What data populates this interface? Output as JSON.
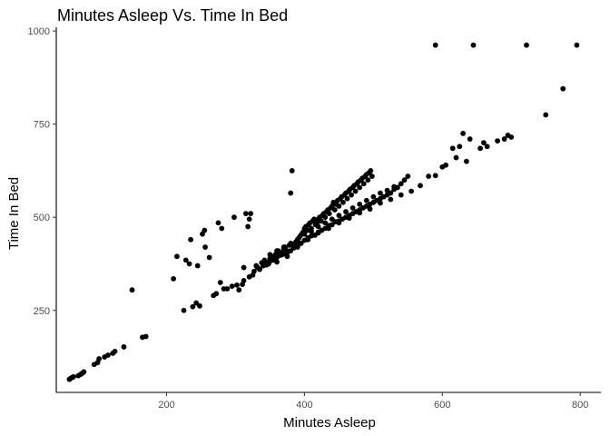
{
  "chart_data": {
    "type": "scatter",
    "title": "Minutes Asleep Vs. Time In Bed",
    "xlabel": "Minutes Asleep",
    "ylabel": "Time In Bed",
    "xlim": [
      40,
      830
    ],
    "ylim": [
      30,
      1010
    ],
    "x_ticks": [
      200,
      400,
      600,
      800
    ],
    "y_ticks": [
      250,
      500,
      750,
      1000
    ],
    "grid": false,
    "legend": "none",
    "point_color": "#000000",
    "points": [
      [
        59,
        65
      ],
      [
        61,
        68
      ],
      [
        63,
        70
      ],
      [
        65,
        72
      ],
      [
        72,
        75
      ],
      [
        75,
        78
      ],
      [
        78,
        82
      ],
      [
        80,
        85
      ],
      [
        95,
        105
      ],
      [
        100,
        110
      ],
      [
        102,
        120
      ],
      [
        110,
        125
      ],
      [
        115,
        130
      ],
      [
        122,
        135
      ],
      [
        125,
        140
      ],
      [
        138,
        152
      ],
      [
        150,
        305
      ],
      [
        165,
        178
      ],
      [
        170,
        180
      ],
      [
        210,
        335
      ],
      [
        215,
        395
      ],
      [
        225,
        250
      ],
      [
        228,
        385
      ],
      [
        233,
        375
      ],
      [
        235,
        440
      ],
      [
        238,
        260
      ],
      [
        243,
        270
      ],
      [
        245,
        370
      ],
      [
        248,
        262
      ],
      [
        252,
        455
      ],
      [
        255,
        465
      ],
      [
        256,
        420
      ],
      [
        262,
        392
      ],
      [
        268,
        290
      ],
      [
        272,
        295
      ],
      [
        275,
        485
      ],
      [
        278,
        325
      ],
      [
        280,
        470
      ],
      [
        283,
        308
      ],
      [
        288,
        308
      ],
      [
        295,
        315
      ],
      [
        298,
        500
      ],
      [
        302,
        318
      ],
      [
        305,
        305
      ],
      [
        310,
        320
      ],
      [
        312,
        330
      ],
      [
        312,
        365
      ],
      [
        315,
        510
      ],
      [
        318,
        475
      ],
      [
        320,
        495
      ],
      [
        320,
        340
      ],
      [
        322,
        510
      ],
      [
        325,
        345
      ],
      [
        327,
        355
      ],
      [
        330,
        370
      ],
      [
        332,
        365
      ],
      [
        335,
        360
      ],
      [
        338,
        378
      ],
      [
        340,
        370
      ],
      [
        342,
        385
      ],
      [
        345,
        380
      ],
      [
        348,
        375
      ],
      [
        350,
        390
      ],
      [
        352,
        395
      ],
      [
        355,
        385
      ],
      [
        358,
        400
      ],
      [
        360,
        392
      ],
      [
        362,
        410
      ],
      [
        365,
        405
      ],
      [
        368,
        400
      ],
      [
        370,
        415
      ],
      [
        372,
        420
      ],
      [
        375,
        410
      ],
      [
        378,
        425
      ],
      [
        380,
        565
      ],
      [
        382,
        625
      ],
      [
        384,
        420
      ],
      [
        386,
        430
      ],
      [
        388,
        435
      ],
      [
        390,
        440
      ],
      [
        392,
        445
      ],
      [
        394,
        450
      ],
      [
        396,
        455
      ],
      [
        398,
        460
      ],
      [
        400,
        470
      ],
      [
        402,
        475
      ],
      [
        404,
        465
      ],
      [
        406,
        480
      ],
      [
        408,
        485
      ],
      [
        410,
        470
      ],
      [
        412,
        490
      ],
      [
        414,
        495
      ],
      [
        416,
        480
      ],
      [
        418,
        485
      ],
      [
        420,
        495
      ],
      [
        422,
        500
      ],
      [
        424,
        490
      ],
      [
        426,
        505
      ],
      [
        428,
        510
      ],
      [
        430,
        500
      ],
      [
        432,
        515
      ],
      [
        434,
        520
      ],
      [
        436,
        510
      ],
      [
        438,
        525
      ],
      [
        440,
        530
      ],
      [
        442,
        540
      ],
      [
        444,
        520
      ],
      [
        446,
        535
      ],
      [
        448,
        545
      ],
      [
        450,
        530
      ],
      [
        452,
        550
      ],
      [
        454,
        555
      ],
      [
        456,
        540
      ],
      [
        458,
        560
      ],
      [
        460,
        565
      ],
      [
        462,
        550
      ],
      [
        464,
        570
      ],
      [
        466,
        575
      ],
      [
        468,
        560
      ],
      [
        470,
        580
      ],
      [
        472,
        585
      ],
      [
        474,
        570
      ],
      [
        476,
        590
      ],
      [
        478,
        595
      ],
      [
        480,
        580
      ],
      [
        482,
        600
      ],
      [
        484,
        605
      ],
      [
        486,
        590
      ],
      [
        488,
        610
      ],
      [
        490,
        615
      ],
      [
        492,
        600
      ],
      [
        494,
        620
      ],
      [
        496,
        625
      ],
      [
        498,
        610
      ],
      [
        340,
        370
      ],
      [
        345,
        372
      ],
      [
        350,
        382
      ],
      [
        355,
        392
      ],
      [
        360,
        395
      ],
      [
        365,
        398
      ],
      [
        370,
        402
      ],
      [
        375,
        405
      ],
      [
        380,
        410
      ],
      [
        385,
        418
      ],
      [
        390,
        425
      ],
      [
        395,
        430
      ],
      [
        400,
        438
      ],
      [
        405,
        445
      ],
      [
        410,
        450
      ],
      [
        415,
        452
      ],
      [
        420,
        460
      ],
      [
        425,
        465
      ],
      [
        430,
        470
      ],
      [
        435,
        478
      ],
      [
        440,
        480
      ],
      [
        445,
        488
      ],
      [
        450,
        490
      ],
      [
        455,
        495
      ],
      [
        460,
        500
      ],
      [
        465,
        505
      ],
      [
        470,
        510
      ],
      [
        475,
        515
      ],
      [
        480,
        520
      ],
      [
        485,
        525
      ],
      [
        490,
        530
      ],
      [
        495,
        535
      ],
      [
        500,
        540
      ],
      [
        505,
        545
      ],
      [
        510,
        550
      ],
      [
        515,
        555
      ],
      [
        520,
        560
      ],
      [
        525,
        565
      ],
      [
        530,
        575
      ],
      [
        535,
        580
      ],
      [
        540,
        590
      ],
      [
        545,
        600
      ],
      [
        550,
        610
      ],
      [
        350,
        400
      ],
      [
        360,
        410
      ],
      [
        370,
        420
      ],
      [
        380,
        430
      ],
      [
        390,
        440
      ],
      [
        400,
        455
      ],
      [
        410,
        462
      ],
      [
        420,
        475
      ],
      [
        430,
        485
      ],
      [
        440,
        495
      ],
      [
        450,
        505
      ],
      [
        460,
        515
      ],
      [
        470,
        525
      ],
      [
        480,
        535
      ],
      [
        490,
        545
      ],
      [
        500,
        555
      ],
      [
        510,
        565
      ],
      [
        520,
        572
      ],
      [
        530,
        582
      ],
      [
        360,
        380
      ],
      [
        375,
        395
      ],
      [
        390,
        420
      ],
      [
        405,
        440
      ],
      [
        420,
        458
      ],
      [
        435,
        470
      ],
      [
        450,
        485
      ],
      [
        465,
        498
      ],
      [
        480,
        512
      ],
      [
        495,
        522
      ],
      [
        510,
        538
      ],
      [
        525,
        548
      ],
      [
        540,
        560
      ],
      [
        555,
        570
      ],
      [
        568,
        585
      ],
      [
        580,
        610
      ],
      [
        590,
        612
      ],
      [
        600,
        635
      ],
      [
        605,
        640
      ],
      [
        615,
        685
      ],
      [
        620,
        660
      ],
      [
        625,
        690
      ],
      [
        630,
        725
      ],
      [
        635,
        650
      ],
      [
        640,
        710
      ],
      [
        655,
        685
      ],
      [
        660,
        700
      ],
      [
        665,
        690
      ],
      [
        680,
        705
      ],
      [
        690,
        710
      ],
      [
        695,
        720
      ],
      [
        700,
        715
      ],
      [
        750,
        775
      ],
      [
        775,
        845
      ],
      [
        590,
        962
      ],
      [
        645,
        962
      ],
      [
        722,
        962
      ],
      [
        795,
        962
      ]
    ]
  }
}
